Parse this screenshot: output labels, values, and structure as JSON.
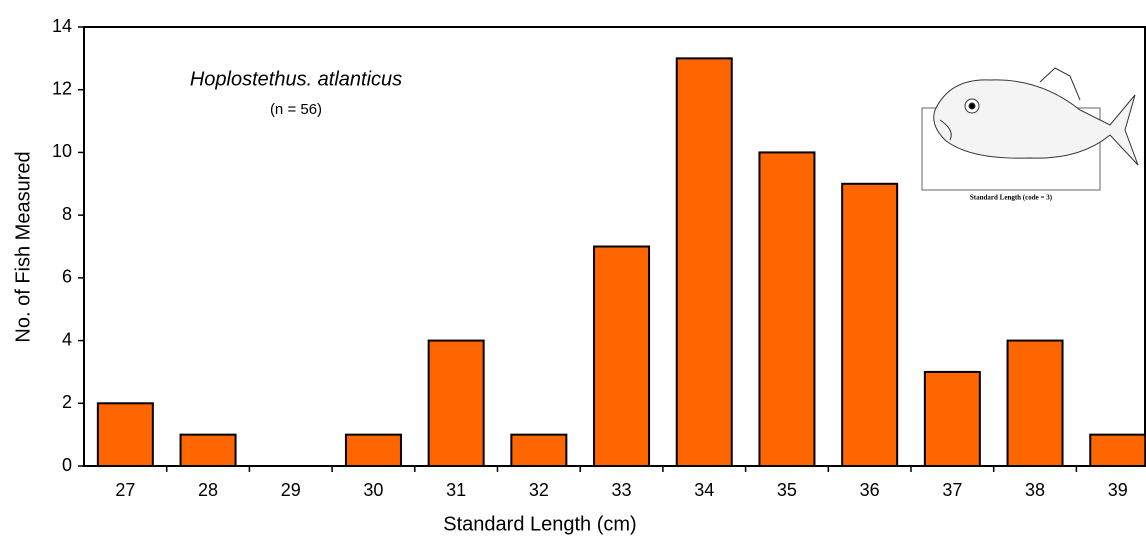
{
  "chart_data": {
    "type": "bar",
    "title": "Hoplostethus. atlanticus",
    "subtitle": "(n = 56)",
    "x_label": "Standard Length (cm)",
    "y_label": "No. of Fish Measured",
    "image_caption": "Standard Length (code = 3)",
    "categories": [
      "27",
      "28",
      "29",
      "30",
      "31",
      "32",
      "33",
      "34",
      "35",
      "36",
      "37",
      "38",
      "39"
    ],
    "values": [
      2,
      1,
      0,
      1,
      4,
      1,
      7,
      13,
      10,
      9,
      3,
      4,
      1
    ],
    "color": "#ff6600",
    "ylim": [
      0,
      14
    ],
    "yticks": [
      0,
      2,
      4,
      6,
      8,
      10,
      12,
      14
    ],
    "grid": false
  }
}
